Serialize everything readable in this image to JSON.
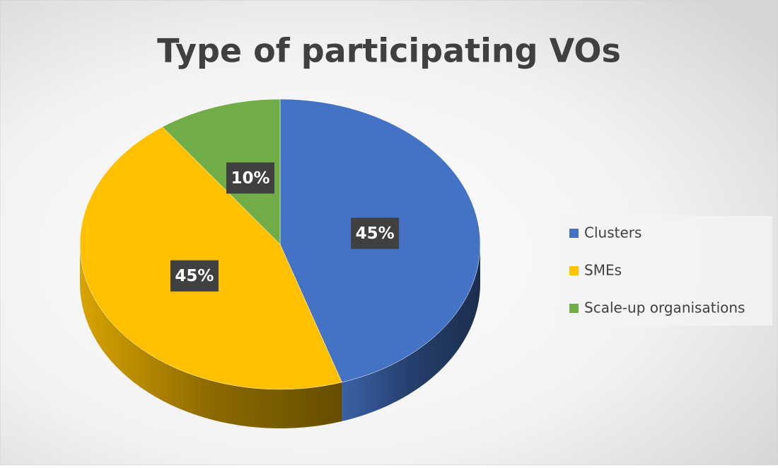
{
  "chart_data": {
    "type": "pie",
    "title": "Type of participating VOs",
    "categories": [
      "Clusters",
      "SMEs",
      "Scale-up organisations"
    ],
    "values": [
      45,
      45,
      10
    ],
    "value_labels": [
      "45%",
      "45%",
      "10%"
    ],
    "colors": [
      "#4472c4",
      "#ffc000",
      "#70ad47"
    ],
    "legend": "right"
  }
}
